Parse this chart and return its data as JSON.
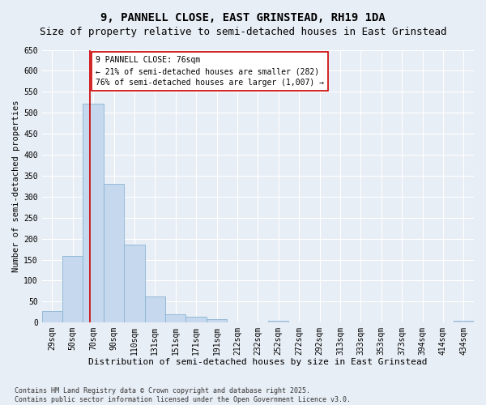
{
  "title": "9, PANNELL CLOSE, EAST GRINSTEAD, RH19 1DA",
  "subtitle": "Size of property relative to semi-detached houses in East Grinstead",
  "xlabel": "Distribution of semi-detached houses by size in East Grinstead",
  "ylabel": "Number of semi-detached properties",
  "categories": [
    "29sqm",
    "50sqm",
    "70sqm",
    "90sqm",
    "110sqm",
    "131sqm",
    "151sqm",
    "171sqm",
    "191sqm",
    "212sqm",
    "232sqm",
    "252sqm",
    "272sqm",
    "292sqm",
    "313sqm",
    "333sqm",
    "353sqm",
    "373sqm",
    "394sqm",
    "414sqm",
    "434sqm"
  ],
  "values": [
    28,
    159,
    521,
    330,
    186,
    63,
    20,
    13,
    9,
    0,
    0,
    5,
    0,
    0,
    0,
    0,
    0,
    0,
    0,
    0,
    4
  ],
  "bar_color": "#c5d8ed",
  "bar_edge_color": "#8ab4d4",
  "highlight_line_color": "#cc0000",
  "annotation_line1": "9 PANNELL CLOSE: 76sqm",
  "annotation_line2": "← 21% of semi-detached houses are smaller (282)",
  "annotation_line3": "76% of semi-detached houses are larger (1,007) →",
  "annotation_box_color": "#cc0000",
  "ylim": [
    0,
    650
  ],
  "yticks": [
    0,
    50,
    100,
    150,
    200,
    250,
    300,
    350,
    400,
    450,
    500,
    550,
    600,
    650
  ],
  "background_color": "#e8eef5",
  "footer_text": "Contains HM Land Registry data © Crown copyright and database right 2025.\nContains public sector information licensed under the Open Government Licence v3.0.",
  "title_fontsize": 10,
  "subtitle_fontsize": 9,
  "xlabel_fontsize": 8,
  "ylabel_fontsize": 7.5,
  "tick_fontsize": 7,
  "annotation_fontsize": 7,
  "footer_fontsize": 6
}
